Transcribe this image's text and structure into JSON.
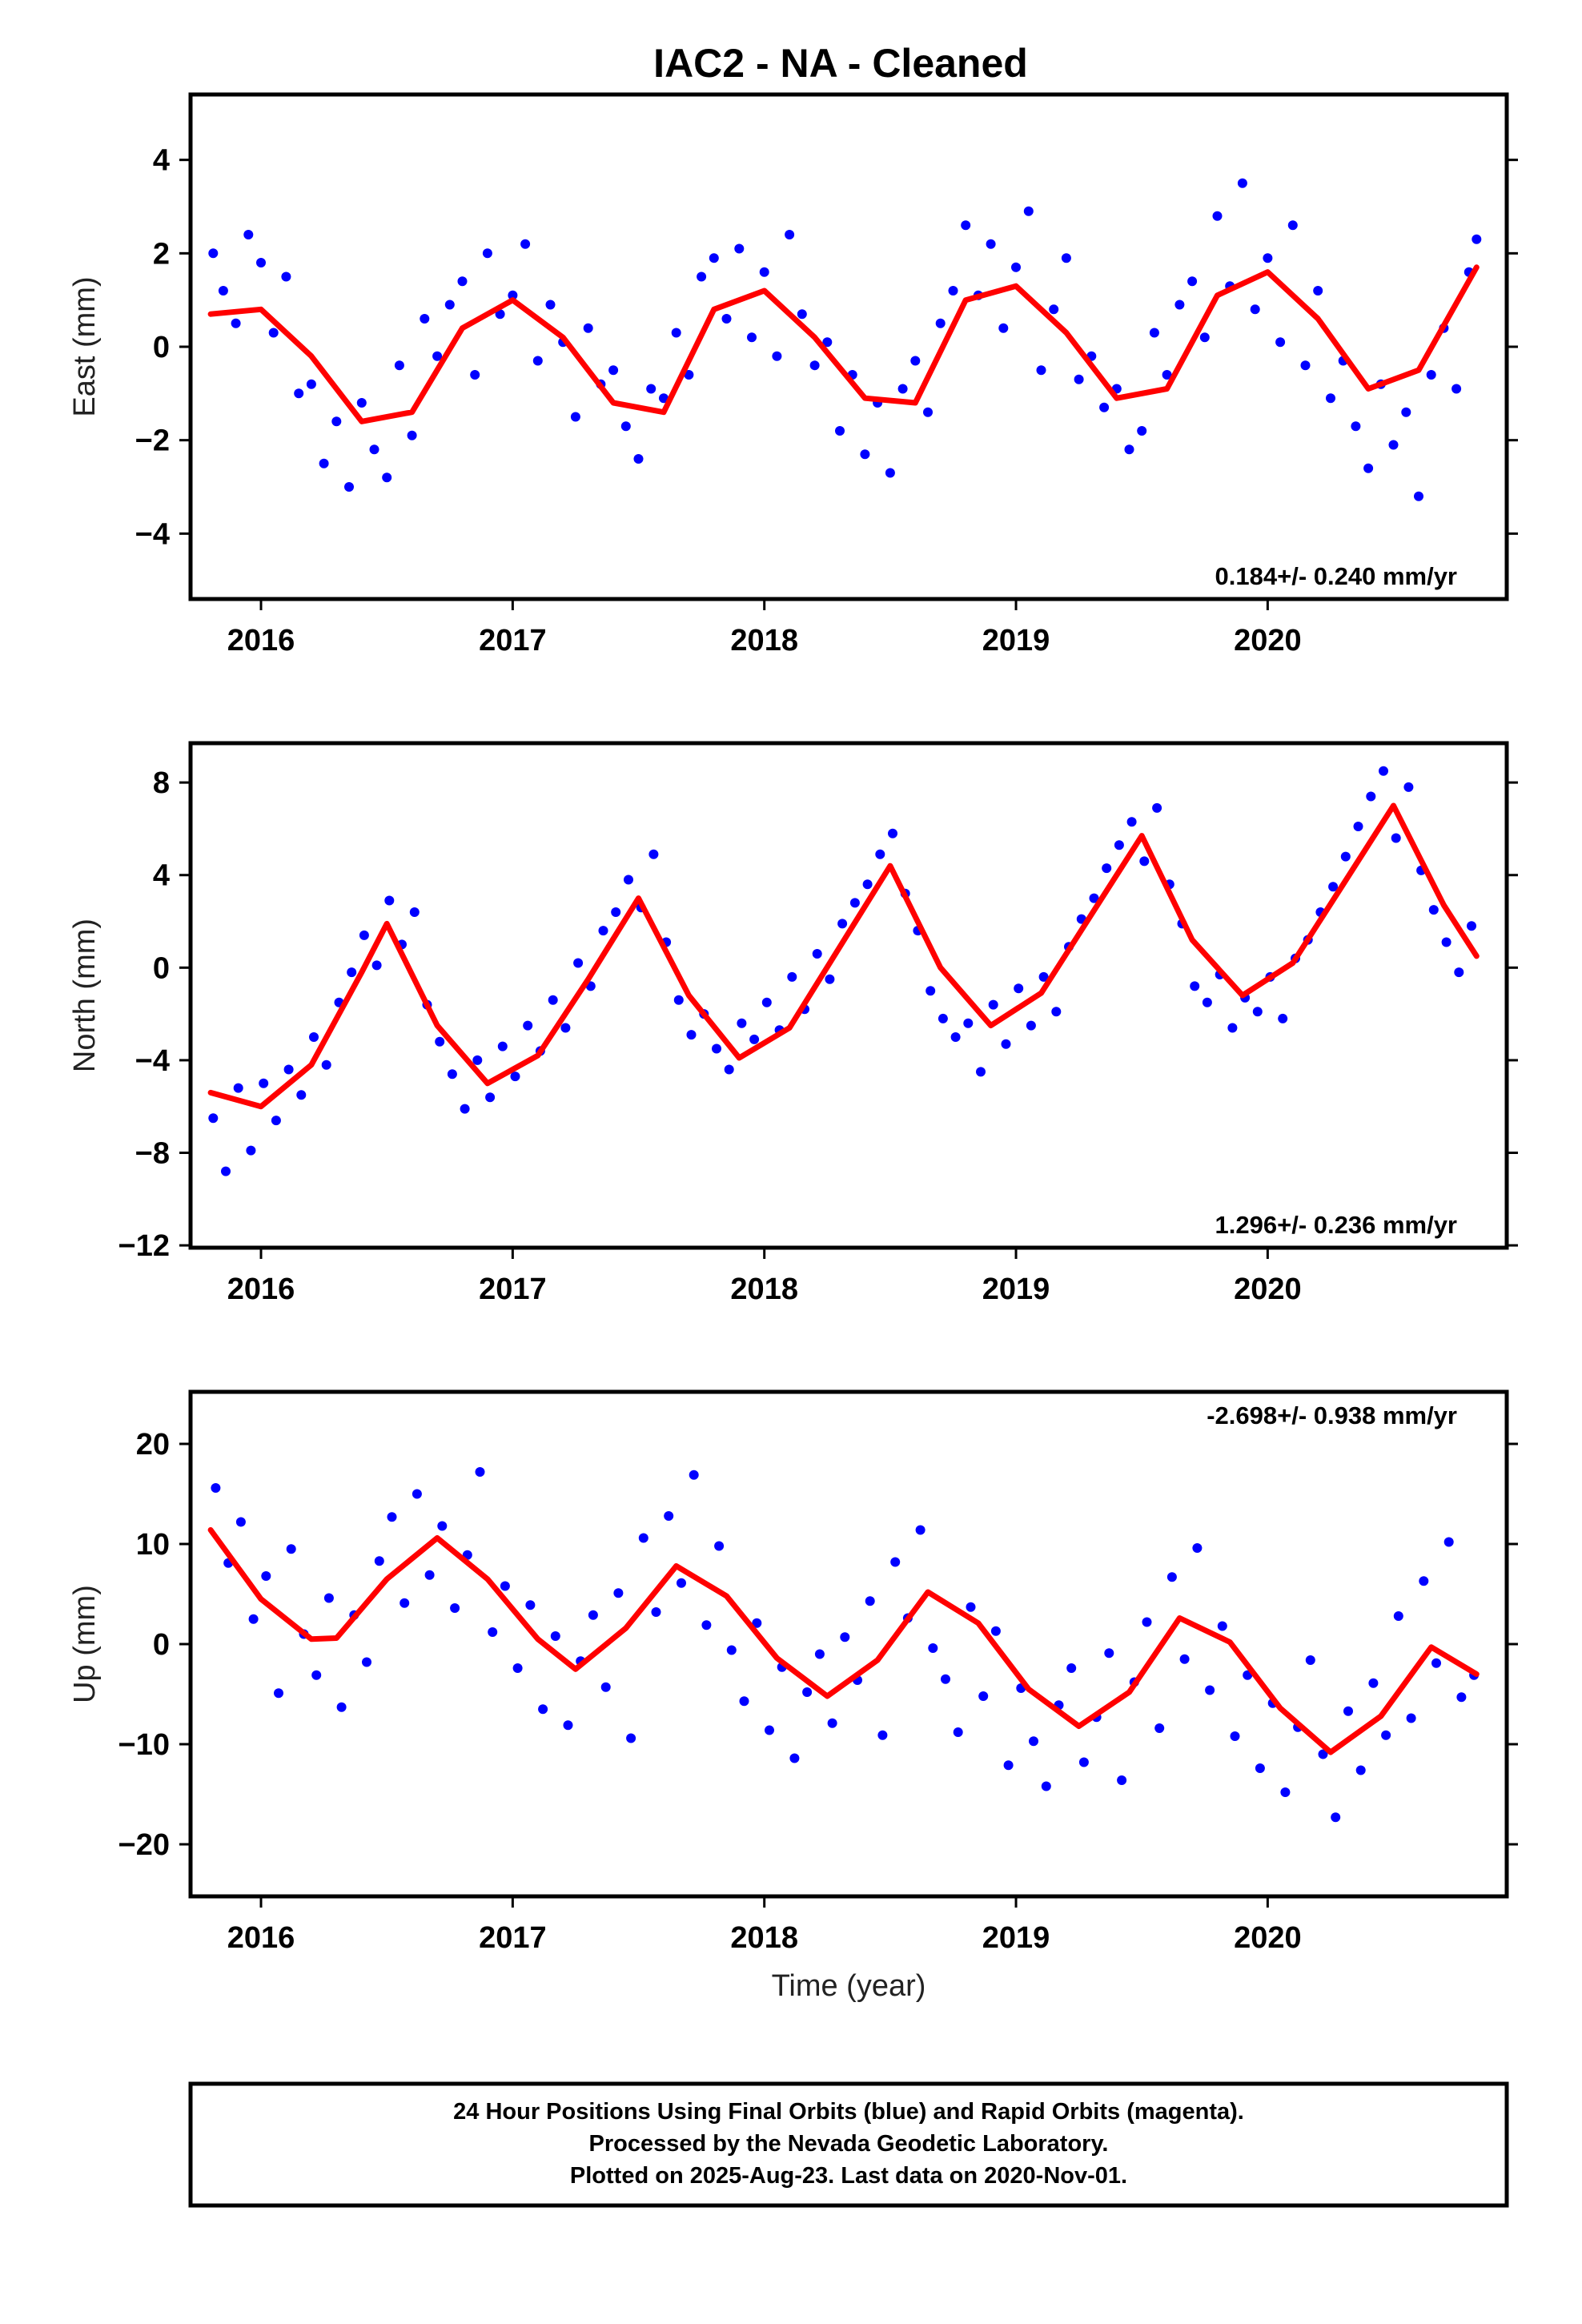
{
  "figure": {
    "title": "IAC2  - NA - Cleaned",
    "xlabel": "Time (year)"
  },
  "footer": {
    "line1": "24 Hour Positions Using Final Orbits (blue) and Rapid Orbits (magenta).",
    "line2": "Processed by the Nevada Geodetic Laboratory.",
    "line3": "Plotted on 2025-Aug-23. Last data on 2020-Nov-01."
  },
  "colors": {
    "points": "#0000ff",
    "fit": "#ff0000",
    "frame": "#000000"
  },
  "chart_data": [
    {
      "type": "scatter",
      "component": "east",
      "ylabel": "East (mm)",
      "rate_text": "0.184+/- 0.240 mm/yr",
      "xlim": [
        2015.72,
        2020.95
      ],
      "ylim": [
        -5.4,
        5.4
      ],
      "x_ticks": [
        2016,
        2017,
        2018,
        2019,
        2020
      ],
      "y_ticks": [
        -4,
        -2,
        0,
        2,
        4
      ],
      "series": [
        {
          "kind": "fit_line",
          "x": [
            2015.8,
            2016.0,
            2016.2,
            2016.4,
            2016.6,
            2016.8,
            2017.0,
            2017.2,
            2017.4,
            2017.6,
            2017.8,
            2018.0,
            2018.2,
            2018.4,
            2018.6,
            2018.8,
            2019.0,
            2019.2,
            2019.4,
            2019.6,
            2019.8,
            2020.0,
            2020.2,
            2020.4,
            2020.6,
            2020.83
          ],
          "y": [
            0.7,
            0.8,
            -0.2,
            -1.6,
            -1.4,
            0.4,
            1.0,
            0.2,
            -1.2,
            -1.4,
            0.8,
            1.2,
            0.2,
            -1.1,
            -1.2,
            1.0,
            1.3,
            0.3,
            -1.1,
            -0.9,
            1.1,
            1.6,
            0.6,
            -0.9,
            -0.5,
            1.7
          ]
        },
        {
          "kind": "daily_points",
          "x": [
            2015.81,
            2015.85,
            2015.9,
            2015.95,
            2016.0,
            2016.05,
            2016.1,
            2016.15,
            2016.2,
            2016.25,
            2016.3,
            2016.35,
            2016.4,
            2016.45,
            2016.5,
            2016.55,
            2016.6,
            2016.65,
            2016.7,
            2016.75,
            2016.8,
            2016.85,
            2016.9,
            2016.95,
            2017.0,
            2017.05,
            2017.1,
            2017.15,
            2017.2,
            2017.25,
            2017.3,
            2017.35,
            2017.4,
            2017.45,
            2017.5,
            2017.55,
            2017.6,
            2017.65,
            2017.7,
            2017.75,
            2017.8,
            2017.85,
            2017.9,
            2017.95,
            2018.0,
            2018.05,
            2018.1,
            2018.15,
            2018.2,
            2018.25,
            2018.3,
            2018.35,
            2018.4,
            2018.45,
            2018.5,
            2018.55,
            2018.6,
            2018.65,
            2018.7,
            2018.75,
            2018.8,
            2018.85,
            2018.9,
            2018.95,
            2019.0,
            2019.05,
            2019.1,
            2019.15,
            2019.2,
            2019.25,
            2019.3,
            2019.35,
            2019.4,
            2019.45,
            2019.5,
            2019.55,
            2019.6,
            2019.65,
            2019.7,
            2019.75,
            2019.8,
            2019.85,
            2019.9,
            2019.95,
            2020.0,
            2020.05,
            2020.1,
            2020.15,
            2020.2,
            2020.25,
            2020.3,
            2020.35,
            2020.4,
            2020.45,
            2020.5,
            2020.55,
            2020.6,
            2020.65,
            2020.7,
            2020.75,
            2020.8,
            2020.83
          ],
          "y": [
            2.0,
            1.2,
            0.5,
            2.4,
            1.8,
            0.3,
            1.5,
            -1.0,
            -0.8,
            -2.5,
            -1.6,
            -3.0,
            -1.2,
            -2.2,
            -2.8,
            -0.4,
            -1.9,
            0.6,
            -0.2,
            0.9,
            1.4,
            -0.6,
            2.0,
            0.7,
            1.1,
            2.2,
            -0.3,
            0.9,
            0.1,
            -1.5,
            0.4,
            -0.8,
            -0.5,
            -1.7,
            -2.4,
            -0.9,
            -1.1,
            0.3,
            -0.6,
            1.5,
            1.9,
            0.6,
            2.1,
            0.2,
            1.6,
            -0.2,
            2.4,
            0.7,
            -0.4,
            0.1,
            -1.8,
            -0.6,
            -2.3,
            -1.2,
            -2.7,
            -0.9,
            -0.3,
            -1.4,
            0.5,
            1.2,
            2.6,
            1.1,
            2.2,
            0.4,
            1.7,
            2.9,
            -0.5,
            0.8,
            1.9,
            -0.7,
            -0.2,
            -1.3,
            -0.9,
            -2.2,
            -1.8,
            0.3,
            -0.6,
            0.9,
            1.4,
            0.2,
            2.8,
            1.3,
            3.5,
            0.8,
            1.9,
            0.1,
            2.6,
            -0.4,
            1.2,
            -1.1,
            -0.3,
            -1.7,
            -2.6,
            -0.8,
            -2.1,
            -1.4,
            -3.2,
            -0.6,
            0.4,
            -0.9,
            1.6,
            2.3
          ]
        }
      ]
    },
    {
      "type": "scatter",
      "component": "north",
      "ylabel": "North (mm)",
      "rate_text": "1.296+/- 0.236 mm/yr",
      "xlim": [
        2015.72,
        2020.95
      ],
      "ylim": [
        -12.1,
        9.7
      ],
      "x_ticks": [
        2016,
        2017,
        2018,
        2019,
        2020
      ],
      "y_ticks": [
        -12,
        -8,
        -4,
        0,
        4,
        8
      ],
      "series": [
        {
          "kind": "fit_line",
          "x": [
            2015.8,
            2016.0,
            2016.2,
            2016.4,
            2016.5,
            2016.7,
            2016.9,
            2017.1,
            2017.3,
            2017.5,
            2017.7,
            2017.9,
            2018.1,
            2018.3,
            2018.5,
            2018.7,
            2018.9,
            2019.1,
            2019.3,
            2019.5,
            2019.7,
            2019.9,
            2020.1,
            2020.3,
            2020.5,
            2020.7,
            2020.83
          ],
          "y": [
            -5.4,
            -6.0,
            -4.2,
            -0.2,
            1.9,
            -2.5,
            -5.0,
            -3.8,
            -0.5,
            3.0,
            -1.2,
            -3.9,
            -2.6,
            0.9,
            4.4,
            0.0,
            -2.5,
            -1.1,
            2.3,
            5.7,
            1.2,
            -1.2,
            0.2,
            3.6,
            7.0,
            2.7,
            0.5
          ]
        },
        {
          "kind": "daily_points",
          "x": [
            2015.81,
            2015.86,
            2015.91,
            2015.96,
            2016.01,
            2016.06,
            2016.11,
            2016.16,
            2016.21,
            2016.26,
            2016.31,
            2016.36,
            2016.41,
            2016.46,
            2016.51,
            2016.56,
            2016.61,
            2016.66,
            2016.71,
            2016.76,
            2016.81,
            2016.86,
            2016.91,
            2016.96,
            2017.01,
            2017.06,
            2017.11,
            2017.16,
            2017.21,
            2017.26,
            2017.31,
            2017.36,
            2017.41,
            2017.46,
            2017.51,
            2017.56,
            2017.61,
            2017.66,
            2017.71,
            2017.76,
            2017.81,
            2017.86,
            2017.91,
            2017.96,
            2018.01,
            2018.06,
            2018.11,
            2018.16,
            2018.21,
            2018.26,
            2018.31,
            2018.36,
            2018.41,
            2018.46,
            2018.51,
            2018.56,
            2018.61,
            2018.66,
            2018.71,
            2018.76,
            2018.81,
            2018.86,
            2018.91,
            2018.96,
            2019.01,
            2019.06,
            2019.11,
            2019.16,
            2019.21,
            2019.26,
            2019.31,
            2019.36,
            2019.41,
            2019.46,
            2019.51,
            2019.56,
            2019.61,
            2019.66,
            2019.71,
            2019.76,
            2019.81,
            2019.86,
            2019.91,
            2019.96,
            2020.01,
            2020.06,
            2020.11,
            2020.16,
            2020.21,
            2020.26,
            2020.31,
            2020.36,
            2020.41,
            2020.46,
            2020.51,
            2020.56,
            2020.61,
            2020.66,
            2020.71,
            2020.76,
            2020.81
          ],
          "y": [
            -6.5,
            -8.8,
            -5.2,
            -7.9,
            -5.0,
            -6.6,
            -4.4,
            -5.5,
            -3.0,
            -4.2,
            -1.5,
            -0.2,
            1.4,
            0.1,
            2.9,
            1.0,
            2.4,
            -1.6,
            -3.2,
            -4.6,
            -6.1,
            -4.0,
            -5.6,
            -3.4,
            -4.7,
            -2.5,
            -3.6,
            -1.4,
            -2.6,
            0.2,
            -0.8,
            1.6,
            2.4,
            3.8,
            2.6,
            4.9,
            1.1,
            -1.4,
            -2.9,
            -2.0,
            -3.5,
            -4.4,
            -2.4,
            -3.1,
            -1.5,
            -2.7,
            -0.4,
            -1.8,
            0.6,
            -0.5,
            1.9,
            2.8,
            3.6,
            4.9,
            5.8,
            3.2,
            1.6,
            -1.0,
            -2.2,
            -3.0,
            -2.4,
            -4.5,
            -1.6,
            -3.3,
            -0.9,
            -2.5,
            -0.4,
            -1.9,
            0.9,
            2.1,
            3.0,
            4.3,
            5.3,
            6.3,
            4.6,
            6.9,
            3.6,
            1.9,
            -0.8,
            -1.5,
            -0.3,
            -2.6,
            -1.3,
            -1.9,
            -0.4,
            -2.2,
            0.4,
            1.2,
            2.4,
            3.5,
            4.8,
            6.1,
            7.4,
            8.5,
            5.6,
            7.8,
            4.2,
            2.5,
            1.1,
            -0.2,
            1.8
          ]
        }
      ]
    },
    {
      "type": "scatter",
      "component": "up",
      "ylabel": "Up (mm)",
      "rate_text": "-2.698+/- 0.938 mm/yr",
      "xlim": [
        2015.72,
        2020.95
      ],
      "ylim": [
        -25.2,
        25.2
      ],
      "x_ticks": [
        2016,
        2017,
        2018,
        2019,
        2020
      ],
      "y_ticks": [
        -20,
        -10,
        0,
        10,
        20
      ],
      "series": [
        {
          "kind": "fit_line",
          "x": [
            2015.8,
            2016.0,
            2016.2,
            2016.3,
            2016.5,
            2016.7,
            2016.9,
            2017.1,
            2017.25,
            2017.45,
            2017.65,
            2017.85,
            2018.05,
            2018.25,
            2018.45,
            2018.65,
            2018.85,
            2019.05,
            2019.25,
            2019.45,
            2019.65,
            2019.85,
            2020.05,
            2020.25,
            2020.45,
            2020.65,
            2020.83
          ],
          "y": [
            11.4,
            4.5,
            0.5,
            0.6,
            6.5,
            10.6,
            6.5,
            0.5,
            -2.5,
            1.6,
            7.8,
            4.8,
            -1.4,
            -5.2,
            -1.6,
            5.2,
            2.1,
            -4.5,
            -8.2,
            -4.8,
            2.6,
            0.2,
            -6.4,
            -10.8,
            -7.2,
            -0.3,
            -3.0
          ]
        },
        {
          "kind": "daily_points",
          "x": [
            2015.82,
            2015.87,
            2015.92,
            2015.97,
            2016.02,
            2016.07,
            2016.12,
            2016.17,
            2016.22,
            2016.27,
            2016.32,
            2016.37,
            2016.42,
            2016.47,
            2016.52,
            2016.57,
            2016.62,
            2016.67,
            2016.72,
            2016.77,
            2016.82,
            2016.87,
            2016.92,
            2016.97,
            2017.02,
            2017.07,
            2017.12,
            2017.17,
            2017.22,
            2017.27,
            2017.32,
            2017.37,
            2017.42,
            2017.47,
            2017.52,
            2017.57,
            2017.62,
            2017.67,
            2017.72,
            2017.77,
            2017.82,
            2017.87,
            2017.92,
            2017.97,
            2018.02,
            2018.07,
            2018.12,
            2018.17,
            2018.22,
            2018.27,
            2018.32,
            2018.37,
            2018.42,
            2018.47,
            2018.52,
            2018.57,
            2018.62,
            2018.67,
            2018.72,
            2018.77,
            2018.82,
            2018.87,
            2018.92,
            2018.97,
            2019.02,
            2019.07,
            2019.12,
            2019.17,
            2019.22,
            2019.27,
            2019.32,
            2019.37,
            2019.42,
            2019.47,
            2019.52,
            2019.57,
            2019.62,
            2019.67,
            2019.72,
            2019.77,
            2019.82,
            2019.87,
            2019.92,
            2019.97,
            2020.02,
            2020.07,
            2020.12,
            2020.17,
            2020.22,
            2020.27,
            2020.32,
            2020.37,
            2020.42,
            2020.47,
            2020.52,
            2020.57,
            2020.62,
            2020.67,
            2020.72,
            2020.77,
            2020.82
          ],
          "y": [
            15.6,
            8.1,
            12.2,
            2.5,
            6.8,
            -4.9,
            9.5,
            1.0,
            -3.1,
            4.6,
            -6.3,
            2.9,
            -1.8,
            8.3,
            12.7,
            4.1,
            15.0,
            6.9,
            11.8,
            3.6,
            8.9,
            17.2,
            1.2,
            5.8,
            -2.4,
            3.9,
            -6.5,
            0.8,
            -8.1,
            -1.7,
            2.9,
            -4.3,
            5.1,
            -9.4,
            10.6,
            3.2,
            12.8,
            6.1,
            16.9,
            1.9,
            9.8,
            -0.6,
            -5.7,
            2.1,
            -8.6,
            -2.3,
            -11.4,
            -4.8,
            -1.0,
            -7.9,
            0.7,
            -3.6,
            4.3,
            -9.1,
            8.2,
            2.6,
            11.4,
            -0.4,
            -3.5,
            -8.8,
            3.7,
            -5.2,
            1.3,
            -12.1,
            -4.4,
            -9.7,
            -14.2,
            -6.1,
            -2.4,
            -11.8,
            -7.3,
            -0.9,
            -13.6,
            -3.8,
            2.2,
            -8.4,
            6.7,
            -1.5,
            9.6,
            -4.6,
            1.8,
            -9.2,
            -3.1,
            -12.4,
            -5.9,
            -14.8,
            -8.3,
            -1.6,
            -11.0,
            -17.3,
            -6.7,
            -12.6,
            -3.9,
            -9.1,
            2.8,
            -7.4,
            6.3,
            -1.9,
            10.2,
            -5.3,
            -3.1
          ]
        }
      ]
    }
  ]
}
